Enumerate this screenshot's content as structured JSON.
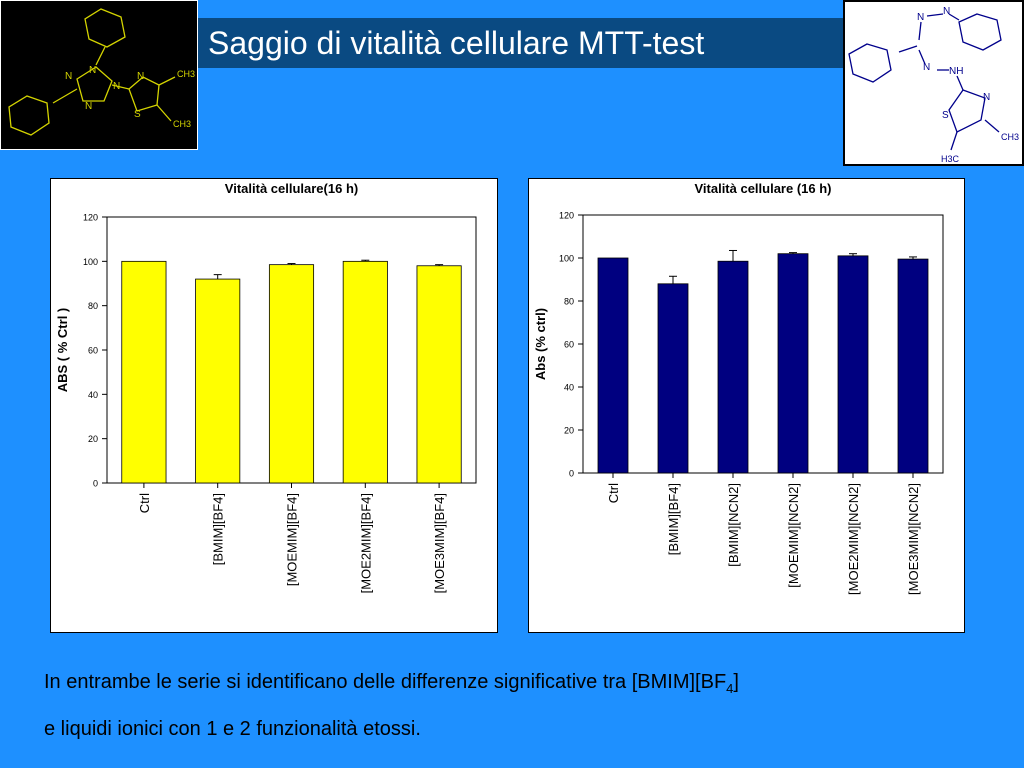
{
  "slide": {
    "title": "Saggio di vitalità cellulare MTT-test",
    "caption_line1_pre": "In entrambe le serie si identificano delle differenze significative tra [BMIM][BF",
    "caption_line1_sub": "4",
    "caption_line1_post": "]",
    "caption_line2": "e liquidi ionici con 1 e 2 funzionalità etossi."
  },
  "molecules": {
    "left": {
      "labels": [
        "N",
        "N",
        "N",
        "N",
        "N",
        "S",
        "CH3",
        "CH3"
      ],
      "colors": {
        "background": "#000000",
        "lines": "#d4d400"
      }
    },
    "right": {
      "labels": [
        "N",
        "N",
        "N",
        "NH",
        "N",
        "S",
        "CH3",
        "H3C"
      ],
      "colors": {
        "background": "#ffffff",
        "lines": "#00008b"
      }
    }
  },
  "chart_data": [
    {
      "type": "bar",
      "title": "Vitalità cellulare(16 h)",
      "xlabel": "",
      "ylabel": "ABS ( % Ctrl )",
      "categories": [
        "Ctrl",
        "[BMIM][BF4]",
        "[MOEMIM][BF4]",
        "[MOE2MIM][BF4]",
        "[MOE3MIM][BF4]"
      ],
      "values": [
        100,
        92,
        98.5,
        100,
        98
      ],
      "errors": [
        0,
        2,
        0.5,
        0.5,
        0.5
      ],
      "ylim": [
        0,
        120
      ],
      "yticks": [
        0,
        20,
        40,
        60,
        80,
        100,
        120
      ],
      "color": "#ffff00",
      "grid": false
    },
    {
      "type": "bar",
      "title": "Vitalità cellulare (16 h)",
      "xlabel": "",
      "ylabel": "Abs (% ctrl)",
      "categories": [
        "Ctrl",
        "[BMIM][BF4]",
        "[BMIM][NCN2]",
        "[MOEMIM][NCN2]",
        "[MOE2MIM][NCN2]",
        "[MOE3MIM][NCN2]"
      ],
      "values": [
        100,
        88,
        98.5,
        102,
        101,
        99.5
      ],
      "errors": [
        0,
        3.5,
        5,
        0.5,
        1,
        1
      ],
      "ylim": [
        0,
        120
      ],
      "yticks": [
        0,
        20,
        40,
        60,
        80,
        100,
        120
      ],
      "color": "#000080",
      "grid": false
    }
  ]
}
